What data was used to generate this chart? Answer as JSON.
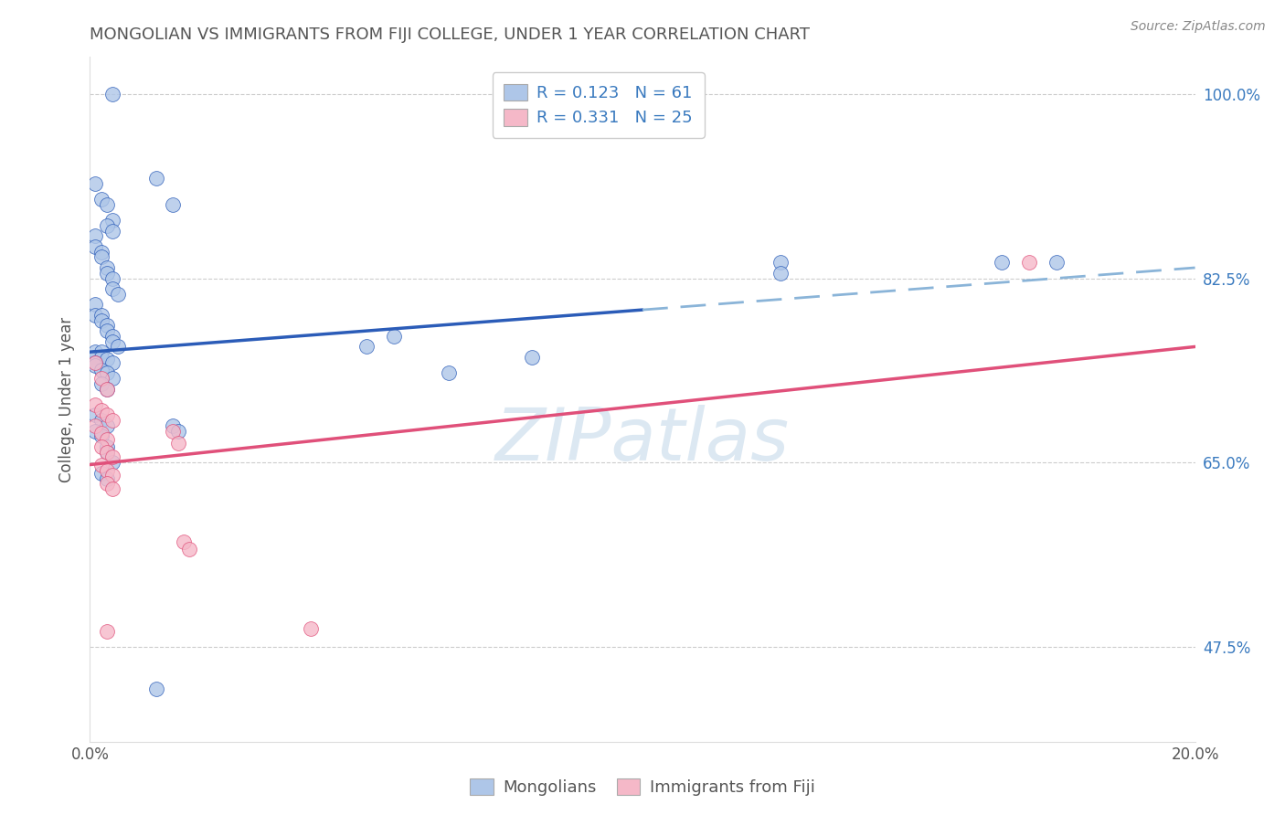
{
  "title": "MONGOLIAN VS IMMIGRANTS FROM FIJI COLLEGE, UNDER 1 YEAR CORRELATION CHART",
  "source": "Source: ZipAtlas.com",
  "ylabel": "College, Under 1 year",
  "legend_label1": "Mongolians",
  "legend_label2": "Immigrants from Fiji",
  "r1": 0.123,
  "n1": 61,
  "r2": 0.331,
  "n2": 25,
  "xlim": [
    0.0,
    0.2
  ],
  "ylim": [
    0.385,
    1.035
  ],
  "yticks": [
    0.475,
    0.65,
    0.825,
    1.0
  ],
  "ytick_labels": [
    "47.5%",
    "65.0%",
    "82.5%",
    "100.0%"
  ],
  "color_blue": "#aec6e8",
  "color_pink": "#f5b8c8",
  "line_blue": "#2b5cb8",
  "line_pink": "#e0507a",
  "line_dashed_color": "#8ab4d8",
  "axis_label_color": "#3a7abf",
  "title_color": "#555555",
  "source_color": "#888888",
  "watermark_color": "#dce8f2",
  "blue_line_y0": 0.755,
  "blue_line_y1": 0.835,
  "pink_line_y0": 0.648,
  "pink_line_y1": 0.76,
  "blue_solid_xend": 0.1,
  "blue_x": [
    0.004,
    0.012,
    0.015,
    0.001,
    0.002,
    0.003,
    0.004,
    0.003,
    0.004,
    0.001,
    0.001,
    0.002,
    0.002,
    0.003,
    0.003,
    0.004,
    0.004,
    0.005,
    0.001,
    0.001,
    0.002,
    0.002,
    0.003,
    0.003,
    0.004,
    0.004,
    0.005,
    0.001,
    0.002,
    0.001,
    0.002,
    0.003,
    0.004,
    0.001,
    0.001,
    0.002,
    0.003,
    0.004,
    0.002,
    0.003,
    0.001,
    0.002,
    0.003,
    0.001,
    0.002,
    0.003,
    0.003,
    0.004,
    0.002,
    0.003,
    0.015,
    0.016,
    0.05,
    0.055,
    0.065,
    0.08,
    0.125,
    0.125,
    0.165,
    0.175,
    0.012
  ],
  "blue_y": [
    1.0,
    0.92,
    0.895,
    0.915,
    0.9,
    0.895,
    0.88,
    0.875,
    0.87,
    0.865,
    0.855,
    0.85,
    0.845,
    0.835,
    0.83,
    0.825,
    0.815,
    0.81,
    0.8,
    0.79,
    0.79,
    0.785,
    0.78,
    0.775,
    0.77,
    0.765,
    0.76,
    0.755,
    0.755,
    0.75,
    0.75,
    0.748,
    0.745,
    0.745,
    0.742,
    0.738,
    0.735,
    0.73,
    0.725,
    0.72,
    0.695,
    0.69,
    0.685,
    0.68,
    0.675,
    0.665,
    0.66,
    0.65,
    0.64,
    0.635,
    0.685,
    0.68,
    0.76,
    0.77,
    0.735,
    0.75,
    0.84,
    0.83,
    0.84,
    0.84,
    0.435
  ],
  "pink_x": [
    0.001,
    0.002,
    0.003,
    0.001,
    0.002,
    0.003,
    0.004,
    0.001,
    0.002,
    0.003,
    0.002,
    0.003,
    0.004,
    0.002,
    0.003,
    0.004,
    0.003,
    0.004,
    0.015,
    0.016,
    0.017,
    0.018,
    0.04,
    0.17,
    0.003
  ],
  "pink_y": [
    0.745,
    0.73,
    0.72,
    0.705,
    0.7,
    0.695,
    0.69,
    0.685,
    0.678,
    0.672,
    0.665,
    0.66,
    0.655,
    0.648,
    0.642,
    0.638,
    0.63,
    0.625,
    0.68,
    0.668,
    0.575,
    0.568,
    0.492,
    0.84,
    0.49
  ]
}
